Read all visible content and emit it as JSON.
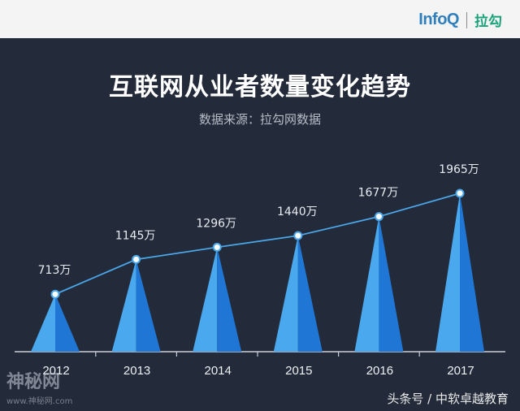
{
  "brand": {
    "left": "InfoQ",
    "right": "拉勾"
  },
  "chart_data": {
    "type": "line",
    "title": "互联网从业者数量变化趋势",
    "subtitle": "数据来源：拉勾网数据",
    "categories": [
      "2012",
      "2013",
      "2014",
      "2015",
      "2016",
      "2017"
    ],
    "values": [
      713,
      1145,
      1296,
      1440,
      1677,
      1965
    ],
    "labels": [
      "713万",
      "1145万",
      "1296万",
      "1440万",
      "1677万",
      "1965万"
    ],
    "unit": "万",
    "ylim": [
      0,
      2000
    ],
    "grid": false,
    "colors": {
      "line": "#4aa6e8",
      "spike_light": "#4aa9ee",
      "spike_dark": "#1f76d4",
      "point_fill": "#ffffff"
    }
  },
  "watermark": {
    "left": "神秘网",
    "left_sub": "www.神秘网.com",
    "right": "头条号 / 中软卓越教育"
  }
}
